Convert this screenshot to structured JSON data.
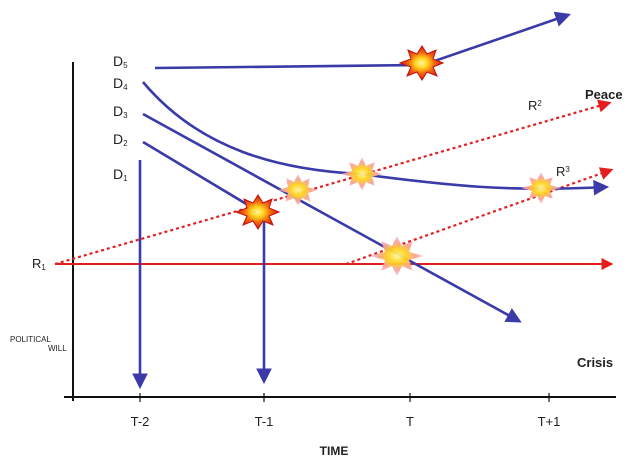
{
  "labels": {
    "d_label": "D",
    "d5_sub": "5",
    "d4_sub": "4",
    "d3_sub": "3",
    "d2_sub": "2",
    "d1_sub": "1",
    "r_label": "R",
    "r1_sub": "1",
    "r2_sub": "2",
    "r3_sub": "3",
    "peace": "Peace",
    "crisis": "Crisis",
    "y_axis_line1": "POLITICAL",
    "y_axis_line2": "WILL",
    "x_axis_title": "TIME"
  },
  "x_ticks": [
    "T-2",
    "T-1",
    "T",
    "T+1"
  ],
  "colors": {
    "blue": "#3a3aa8",
    "red": "#e41e1e",
    "axis": "#111111",
    "burst_outer_pink": "#f6a6a6",
    "burst_outer_red": "#e82812",
    "burst_inner": "#ffd21a",
    "burst_core": "#fff6a0"
  },
  "bursts": [
    {
      "name": "d5-event-burst",
      "type": "explosion"
    },
    {
      "name": "d2-r2-burst",
      "type": "explosion"
    },
    {
      "name": "d3-r2-burst",
      "type": "soft"
    },
    {
      "name": "d4-r2-burst",
      "type": "soft"
    },
    {
      "name": "d3-r1-burst",
      "type": "soft"
    },
    {
      "name": "d4-r3-burst",
      "type": "soft"
    }
  ]
}
